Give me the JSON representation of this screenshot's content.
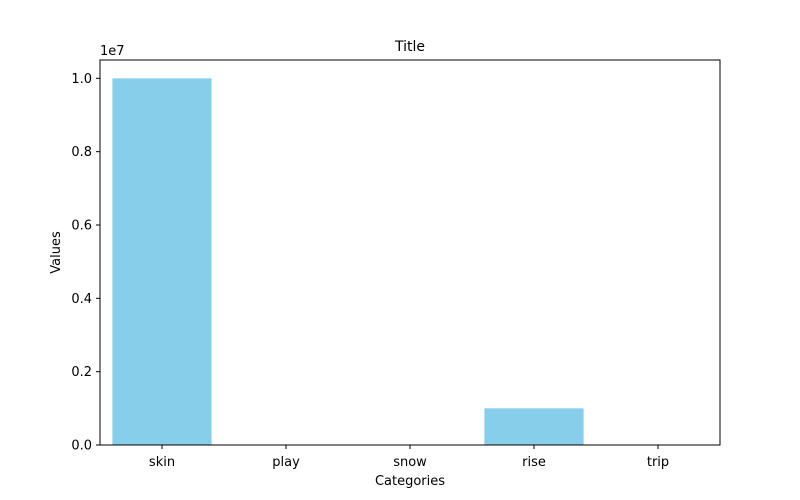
{
  "chart_data": {
    "type": "bar",
    "title": "Title",
    "xlabel": "Categories",
    "ylabel": "Values",
    "categories": [
      "skin",
      "play",
      "snow",
      "rise",
      "trip"
    ],
    "values": [
      10000000,
      0,
      0,
      1000000,
      0
    ],
    "ylim": [
      0,
      10500000
    ],
    "y_ticks": [
      0,
      2000000,
      4000000,
      6000000,
      8000000,
      10000000
    ],
    "y_tick_labels": [
      "0.0",
      "0.2",
      "0.4",
      "0.6",
      "0.8",
      "1.0"
    ],
    "y_multiplier_label": "1e7",
    "bar_color": "#87CEEB",
    "grid": false,
    "legend": "none"
  }
}
